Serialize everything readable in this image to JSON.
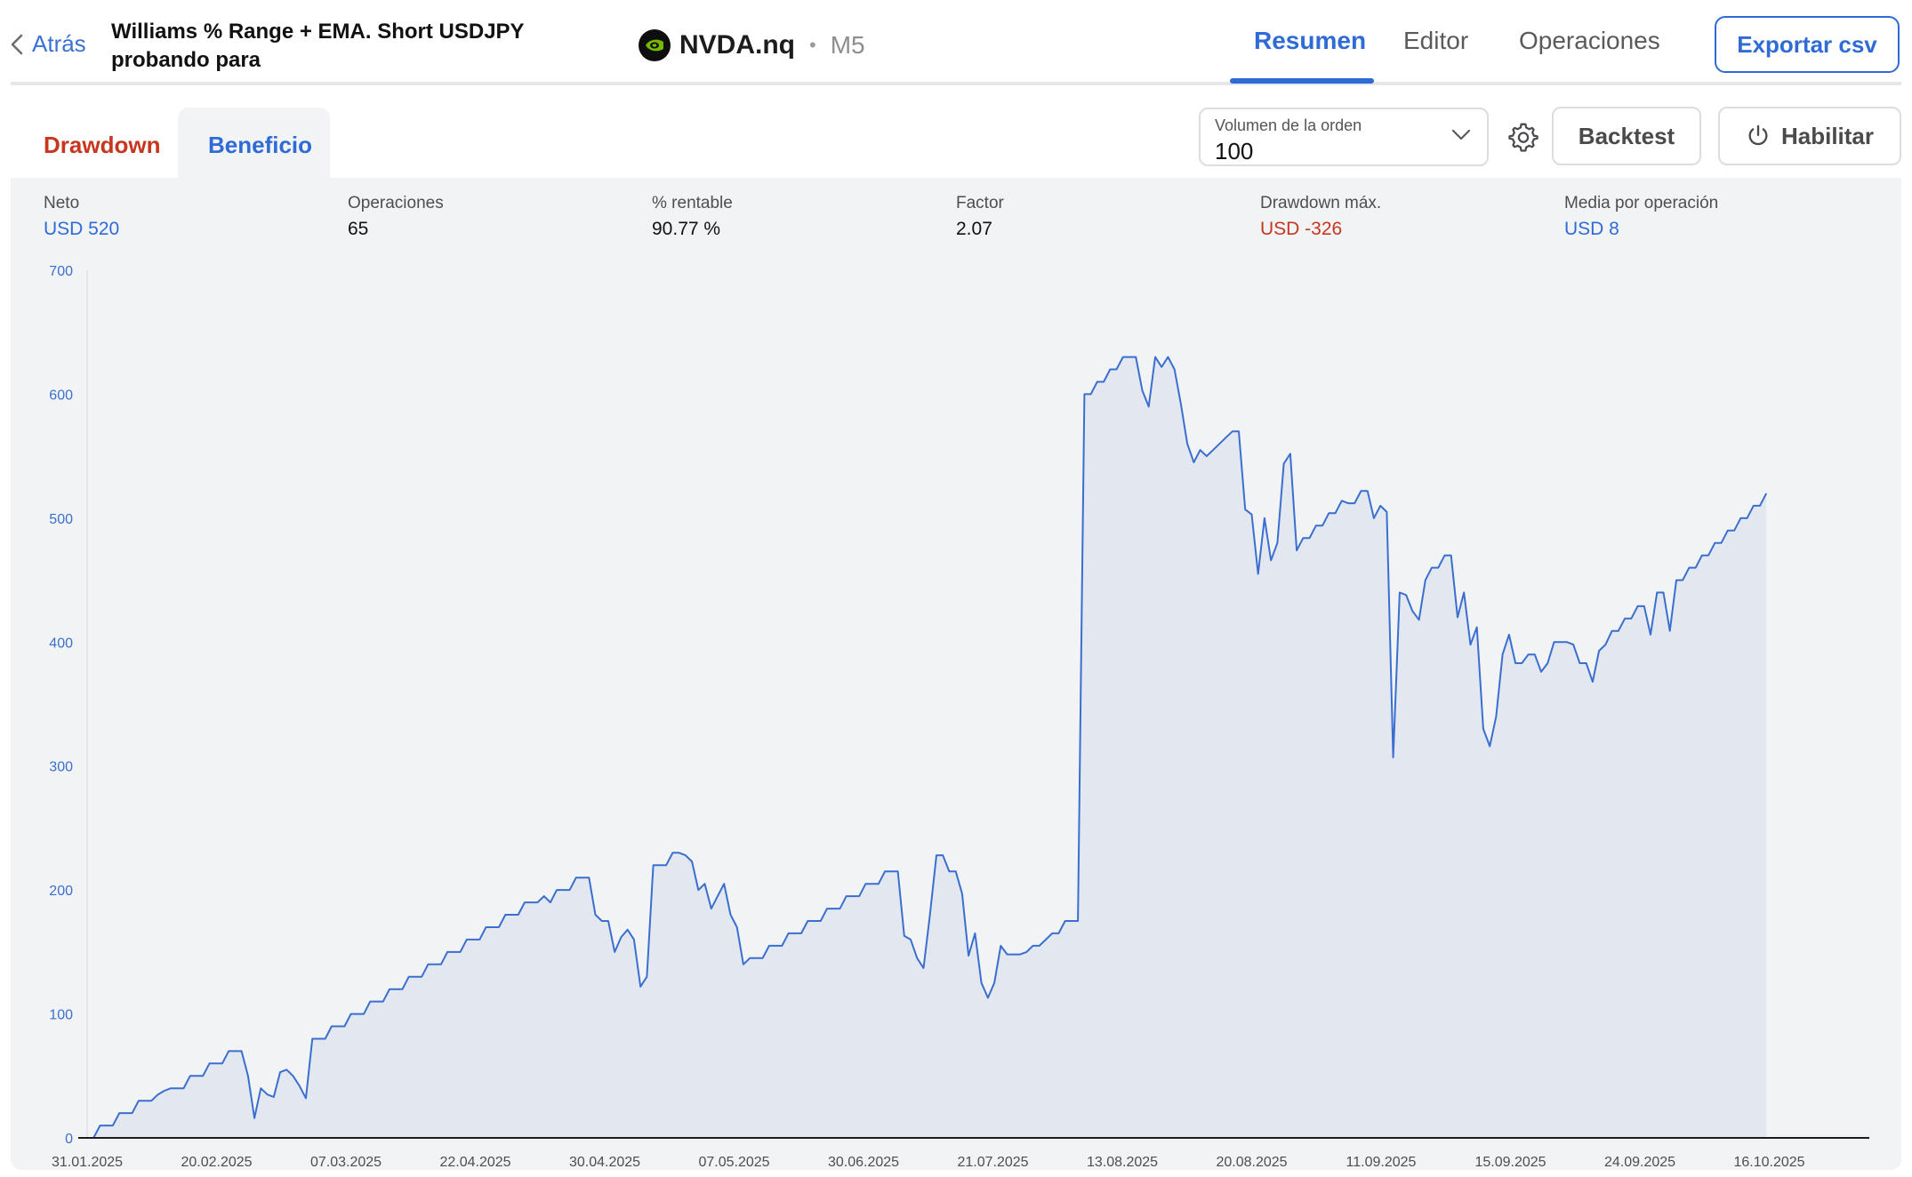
{
  "header": {
    "back_label": "Atrás",
    "title": "Williams % Range + EMA. Short USDJPY probando para",
    "symbol": "NVDA.nq",
    "separator": "•",
    "timeframe": "M5",
    "tabs": [
      "Resumen",
      "Editor",
      "Operaciones"
    ],
    "active_tab": "Resumen",
    "export_label": "Exportar csv"
  },
  "subtabs": {
    "drawdown": "Drawdown",
    "profit": "Beneficio",
    "active": "Beneficio"
  },
  "controls": {
    "volume_label": "Volumen de la orden",
    "volume_value": "100",
    "backtest_label": "Backtest",
    "enable_label": "Habilitar"
  },
  "stats": [
    {
      "label": "Neto",
      "value": "USD 520",
      "color": "blue"
    },
    {
      "label": "Operaciones",
      "value": "65",
      "color": "default"
    },
    {
      "label": "% rentable",
      "value": "90.77 %",
      "color": "default"
    },
    {
      "label": "Factor",
      "value": "2.07",
      "color": "default"
    },
    {
      "label": "Drawdown máx.",
      "value": "USD -326",
      "color": "red"
    },
    {
      "label": "Media por operación",
      "value": "USD 8",
      "color": "blue"
    }
  ],
  "colors": {
    "accent": "#2f6bd6",
    "negative": "#c7361f",
    "line": "#3a6fcf",
    "area": "#e2e7f0"
  },
  "chart_data": {
    "type": "area",
    "ylim": [
      0,
      700
    ],
    "yticks": [
      0,
      100,
      200,
      300,
      400,
      500,
      600,
      700
    ],
    "xtick_labels": [
      "31.01.2025",
      "20.02.2025",
      "07.03.2025",
      "22.04.2025",
      "30.04.2025",
      "07.05.2025",
      "30.06.2025",
      "21.07.2025",
      "13.08.2025",
      "20.08.2025",
      "11.09.2025",
      "15.09.2025",
      "24.09.2025",
      "16.10.2025"
    ],
    "xlim": [
      0,
      277
    ],
    "series": [
      {
        "values": [
          0,
          0,
          10,
          10,
          10,
          20,
          20,
          20,
          30,
          30,
          30,
          35,
          38,
          40,
          40,
          40,
          50,
          50,
          50,
          60,
          60,
          60,
          70,
          70,
          70,
          50,
          16,
          40,
          35,
          33,
          53,
          55,
          50,
          42,
          32,
          80,
          80,
          80,
          90,
          90,
          90,
          100,
          100,
          100,
          110,
          110,
          110,
          120,
          120,
          120,
          130,
          130,
          130,
          140,
          140,
          140,
          150,
          150,
          150,
          160,
          160,
          160,
          170,
          170,
          170,
          180,
          180,
          180,
          190,
          190,
          190,
          195,
          190,
          200,
          200,
          200,
          210,
          210,
          210,
          180,
          175,
          175,
          150,
          162,
          168,
          160,
          122,
          130,
          220,
          220,
          220,
          230,
          230,
          228,
          223,
          200,
          205,
          185,
          195,
          205,
          180,
          170,
          140,
          145,
          145,
          145,
          155,
          155,
          155,
          165,
          165,
          165,
          175,
          175,
          175,
          185,
          185,
          185,
          195,
          195,
          195,
          205,
          205,
          205,
          215,
          215,
          215,
          163,
          160,
          145,
          137,
          180,
          228,
          228,
          215,
          215,
          197,
          147,
          165,
          125,
          113,
          125,
          155,
          148,
          148,
          148,
          150,
          155,
          155,
          160,
          165,
          165,
          175,
          175,
          175,
          600,
          600,
          610,
          610,
          620,
          620,
          630,
          630,
          630,
          603,
          590,
          630,
          622,
          630,
          620,
          592,
          560,
          545,
          555,
          550,
          555,
          560,
          565,
          570,
          570,
          507,
          503,
          455,
          500,
          466,
          480,
          544,
          552,
          474,
          484,
          484,
          494,
          494,
          504,
          504,
          514,
          512,
          512,
          522,
          522,
          500,
          510,
          505,
          307,
          440,
          438,
          425,
          418,
          450,
          460,
          460,
          470,
          470,
          420,
          440,
          398,
          412,
          330,
          316,
          340,
          390,
          406,
          383,
          383,
          390,
          390,
          376,
          383,
          400,
          400,
          400,
          398,
          383,
          383,
          368,
          393,
          398,
          409,
          409,
          419,
          419,
          429,
          429,
          406,
          440,
          440,
          409,
          450,
          450,
          460,
          460,
          470,
          470,
          480,
          480,
          490,
          490,
          500,
          500,
          510,
          510,
          520
        ]
      }
    ],
    "grid": false,
    "legend": "none"
  }
}
